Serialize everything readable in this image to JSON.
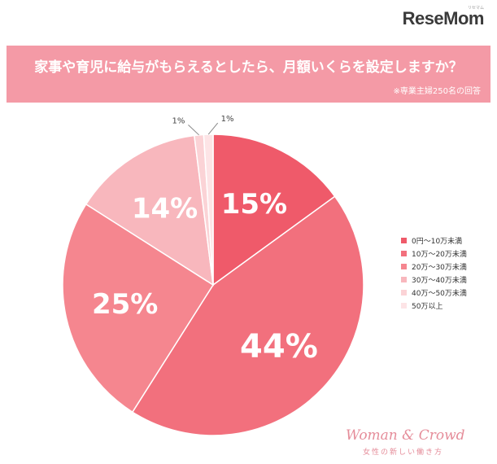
{
  "brand": {
    "logo": "ReseMom",
    "logo_small": "リセマム"
  },
  "header": {
    "title": "家事や育児に給与がもらえるとしたら、月額いくらを設定しますか？",
    "note": "※専業主婦250名の回答"
  },
  "footer": {
    "brand": "Woman & Crowd",
    "tagline": "女性の新しい働き方"
  },
  "chart_data": {
    "type": "pie",
    "unit": "%",
    "slices": [
      {
        "label": "0円～10万未満",
        "value": 15,
        "display": "15%",
        "color": "#ef5a6a"
      },
      {
        "label": "10万～20万未満",
        "value": 44,
        "display": "44%",
        "color": "#f2707d"
      },
      {
        "label": "20万～30万未満",
        "value": 25,
        "display": "25%",
        "color": "#f5868f"
      },
      {
        "label": "30万～40万未満",
        "value": 14,
        "display": "14%",
        "color": "#f8b7bd"
      },
      {
        "label": "40万～50万未満",
        "value": 1,
        "display": "1%",
        "color": "#fbd3d6"
      },
      {
        "label": "50万以上",
        "value": 1,
        "display": "1%",
        "color": "#fde4e6"
      }
    ],
    "legend_position": "right"
  }
}
